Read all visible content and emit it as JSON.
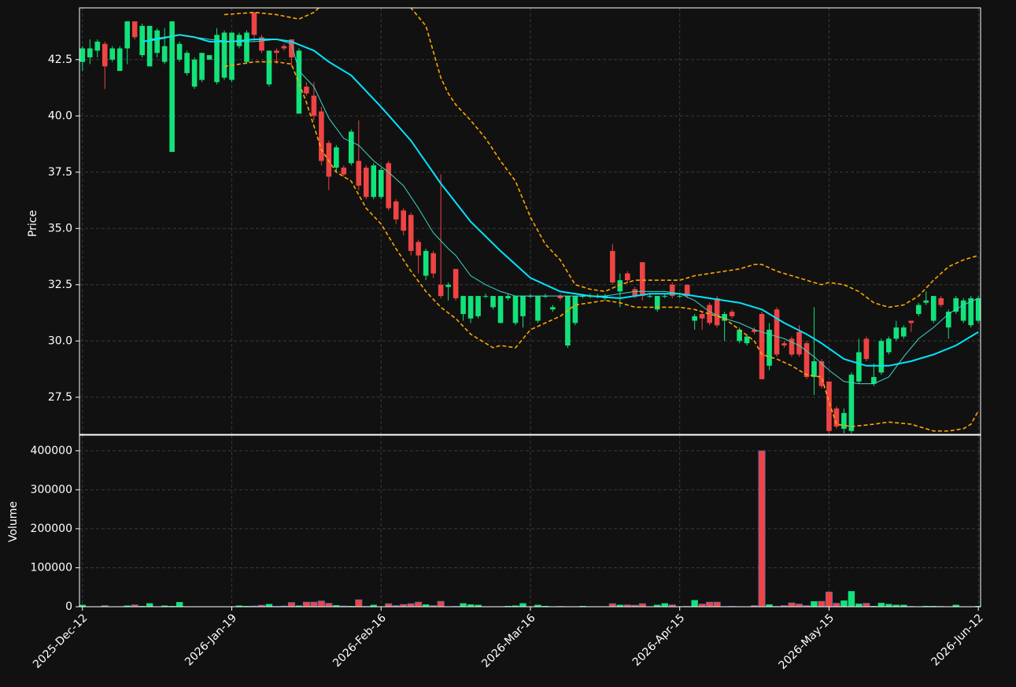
{
  "chart_data": [
    {
      "type": "candlestick",
      "ylabel": "Price",
      "grid": true,
      "up_color": "#12e27a",
      "down_color": "#ee4444",
      "xlim": [
        -0.4,
        120.3
      ],
      "ylim": [
        25.85,
        44.8
      ],
      "yticks": [
        27.5,
        {
          "value": 30,
          "label": "30.0"
        },
        32.5,
        {
          "value": 35,
          "label": "35.0"
        },
        37.5,
        {
          "value": 40,
          "label": "40.0"
        },
        42.5
      ],
      "open": [
        42.4,
        42.6,
        42.9,
        43.2,
        42.5,
        42.0,
        43.0,
        44.2,
        42.7,
        42.2,
        42.8,
        42.4,
        38.4,
        42.5,
        41.9,
        41.3,
        41.6,
        42.5,
        41.5,
        41.7,
        41.6,
        43.1,
        42.4,
        44.6,
        43.5,
        41.4,
        42.9,
        43.1,
        43.4,
        40.1,
        41.3,
        40.9,
        40.2,
        38.8,
        37.7,
        37.7,
        37.9,
        38.0,
        37.7,
        36.4,
        36.4,
        37.9,
        36.2,
        35.8,
        35.6,
        34.4,
        32.9,
        33.9,
        32.5,
        32.4,
        33.2,
        31.2,
        31.0,
        31.1,
        32.0,
        31.5,
        30.8,
        31.9,
        30.8,
        31.1,
        32.0,
        30.9,
        32.0,
        31.4,
        32.0,
        29.8,
        30.8,
        32.0,
        32.0,
        32.0,
        31.9,
        34.0,
        32.2,
        33.0,
        32.3,
        33.5,
        32.0,
        31.4,
        32.0,
        32.5,
        32.0,
        32.5,
        30.9,
        31.2,
        31.6,
        31.9,
        30.9,
        31.3,
        30.0,
        29.9,
        30.5,
        31.2,
        28.9,
        31.4,
        29.9,
        30.1,
        30.4,
        29.9,
        28.4,
        29.1,
        28.2,
        27.0,
        26.1,
        26.0,
        28.2,
        30.1,
        28.1,
        28.6,
        29.5,
        30.1,
        30.2,
        30.9,
        31.2,
        31.7,
        30.9,
        31.9,
        30.6,
        31.3,
        30.9,
        30.7,
        30.9
      ],
      "high": [
        43.1,
        43.4,
        43.4,
        43.3,
        43.1,
        43.1,
        44.2,
        44.2,
        44.1,
        44.0,
        43.9,
        43.9,
        44.2,
        43.3,
        42.9,
        42.6,
        42.8,
        42.7,
        43.9,
        43.8,
        43.7,
        43.7,
        43.8,
        44.6,
        43.6,
        42.9,
        43.0,
        43.2,
        43.4,
        43.0,
        41.5,
        41.5,
        40.4,
        38.9,
        38.7,
        37.8,
        39.4,
        39.8,
        37.8,
        37.9,
        37.7,
        38.0,
        36.3,
        35.9,
        35.7,
        34.5,
        34.1,
        34.0,
        37.4,
        32.6,
        33.2,
        32.0,
        32.0,
        32.0,
        32.1,
        32.0,
        32.0,
        32.1,
        32.0,
        32.0,
        32.1,
        32.0,
        32.1,
        31.6,
        32.1,
        32.0,
        32.0,
        32.1,
        32.1,
        32.1,
        32.1,
        34.3,
        33.0,
        33.1,
        32.4,
        33.5,
        32.1,
        32.0,
        32.1,
        32.6,
        32.1,
        32.5,
        31.2,
        31.3,
        31.7,
        32.0,
        31.3,
        31.4,
        30.6,
        30.3,
        30.6,
        31.3,
        30.8,
        31.5,
        30.0,
        30.2,
        30.7,
        30.0,
        31.5,
        29.2,
        28.2,
        27.1,
        27.0,
        28.6,
        30.1,
        30.2,
        29.0,
        30.1,
        30.2,
        30.9,
        30.7,
        30.9,
        31.7,
        32.2,
        32.0,
        32.0,
        31.4,
        32.0,
        31.9,
        32.0,
        32.0
      ],
      "low": [
        42.0,
        42.3,
        42.6,
        41.2,
        42.4,
        42.0,
        42.3,
        43.4,
        42.6,
        42.2,
        42.6,
        42.3,
        38.4,
        42.4,
        41.8,
        41.2,
        41.5,
        42.5,
        41.4,
        41.6,
        41.5,
        43.0,
        42.3,
        43.3,
        42.8,
        41.3,
        42.3,
        42.9,
        42.2,
        40.1,
        40.9,
        39.8,
        37.8,
        36.7,
        37.5,
        37.3,
        37.8,
        36.7,
        36.3,
        36.3,
        36.3,
        35.8,
        35.2,
        34.7,
        33.8,
        33.0,
        32.7,
        32.8,
        31.9,
        31.8,
        31.8,
        30.9,
        30.8,
        31.0,
        31.9,
        31.4,
        30.8,
        31.8,
        30.7,
        30.6,
        31.9,
        30.8,
        31.9,
        31.3,
        31.8,
        29.7,
        30.7,
        31.9,
        31.9,
        31.9,
        31.8,
        32.5,
        31.5,
        32.6,
        31.9,
        31.8,
        31.9,
        31.3,
        31.9,
        31.9,
        31.9,
        31.9,
        30.5,
        30.5,
        30.7,
        30.6,
        30.0,
        31.0,
        29.9,
        29.8,
        30.3,
        28.3,
        28.7,
        29.3,
        29.7,
        29.3,
        29.3,
        28.3,
        27.6,
        27.9,
        25.9,
        26.1,
        25.9,
        25.9,
        28.1,
        29.1,
        28.0,
        28.5,
        29.4,
        30.0,
        30.1,
        30.4,
        31.1,
        31.6,
        30.8,
        31.5,
        30.1,
        31.2,
        30.8,
        30.6,
        30.8
      ],
      "close": [
        43.0,
        43.0,
        43.3,
        42.2,
        43.0,
        43.0,
        44.2,
        43.5,
        44.0,
        44.0,
        43.8,
        43.1,
        44.2,
        43.2,
        42.8,
        42.5,
        42.8,
        42.7,
        43.6,
        43.7,
        43.7,
        43.6,
        43.7,
        43.6,
        42.9,
        42.9,
        42.8,
        43.0,
        42.6,
        42.9,
        41.0,
        40.0,
        38.0,
        37.3,
        38.6,
        37.4,
        39.3,
        36.9,
        36.4,
        37.8,
        37.6,
        35.9,
        35.4,
        34.9,
        34.0,
        33.8,
        34.0,
        33.0,
        32.0,
        32.5,
        31.9,
        32.0,
        32.0,
        32.0,
        32.0,
        32.0,
        32.0,
        32.0,
        32.0,
        32.0,
        32.0,
        32.0,
        32.0,
        31.5,
        31.9,
        32.0,
        32.0,
        32.0,
        32.0,
        32.0,
        32.0,
        32.6,
        32.7,
        32.7,
        32.0,
        32.0,
        32.0,
        32.0,
        32.0,
        32.0,
        32.0,
        32.0,
        31.1,
        31.0,
        30.8,
        30.7,
        31.2,
        31.1,
        30.5,
        30.2,
        30.4,
        28.3,
        30.5,
        29.4,
        29.8,
        29.4,
        29.4,
        28.4,
        29.1,
        28.0,
        26.0,
        26.2,
        26.8,
        28.5,
        29.5,
        29.2,
        28.4,
        30.0,
        30.1,
        30.6,
        30.6,
        30.8,
        31.6,
        31.8,
        32.0,
        31.6,
        31.3,
        31.9,
        31.8,
        31.9,
        31.9
      ],
      "overlays": [
        {
          "color": "#00e5ff",
          "width": 2,
          "dash": false,
          "x": [
            8,
            10,
            13,
            15,
            17,
            20,
            23,
            26,
            28,
            31,
            33,
            36,
            40,
            44,
            48,
            52,
            56,
            60,
            64,
            68,
            72,
            76,
            80,
            84,
            88,
            91,
            94,
            97,
            99,
            102,
            105,
            108,
            111,
            114,
            117,
            120
          ],
          "values": [
            43.3,
            43.4,
            43.6,
            43.5,
            43.3,
            43.3,
            43.4,
            43.4,
            43.3,
            42.9,
            42.4,
            41.8,
            40.4,
            38.9,
            37.0,
            35.3,
            34.0,
            32.8,
            32.2,
            32.0,
            31.9,
            32.1,
            32.1,
            31.9,
            31.7,
            31.4,
            30.8,
            30.3,
            29.9,
            29.2,
            28.9,
            28.9,
            29.1,
            29.4,
            29.8,
            30.4
          ]
        },
        {
          "color": "#3fd6c8",
          "width": 1,
          "dash": false,
          "x": [
            9,
            13,
            17,
            20,
            23,
            26,
            28,
            29,
            31,
            33,
            35,
            37,
            39,
            41,
            43,
            45,
            47,
            49,
            50,
            52,
            54,
            56,
            58,
            62,
            66,
            70,
            74,
            78,
            80,
            82,
            84,
            86,
            88,
            90,
            92,
            94,
            96,
            98,
            100,
            102,
            104,
            106,
            108,
            110,
            112,
            114,
            116,
            118,
            120
          ],
          "values": [
            43.4,
            43.6,
            43.4,
            43.3,
            43.3,
            43.4,
            43.2,
            42.0,
            41.3,
            39.9,
            39.0,
            38.7,
            38.0,
            37.5,
            36.9,
            35.9,
            34.8,
            34.1,
            33.8,
            32.9,
            32.5,
            32.2,
            32.0,
            32.0,
            32.0,
            32.0,
            32.2,
            32.2,
            32.1,
            31.8,
            31.3,
            31.0,
            30.8,
            30.5,
            30.3,
            30.1,
            29.8,
            29.3,
            28.7,
            28.2,
            28.1,
            28.1,
            28.4,
            29.3,
            30.1,
            30.6,
            31.2,
            31.6,
            31.9
          ]
        },
        {
          "color": "#ffa500",
          "width": 1.6,
          "dash": true,
          "x": [
            19,
            23,
            26,
            29,
            31,
            33,
            36,
            40,
            43,
            46,
            48,
            49,
            50,
            52,
            54,
            56,
            58,
            60,
            62,
            64,
            66,
            68,
            70,
            72,
            74,
            76,
            80,
            82,
            84,
            88,
            90,
            91,
            93,
            95,
            97,
            99,
            100,
            102,
            104,
            106,
            108,
            110,
            112,
            114,
            116,
            118,
            120
          ],
          "values": [
            44.5,
            44.6,
            44.5,
            44.3,
            44.6,
            45.2,
            45.8,
            46.0,
            45.2,
            44.0,
            41.7,
            41.0,
            40.5,
            39.8,
            39.0,
            38.0,
            37.1,
            35.5,
            34.3,
            33.6,
            32.5,
            32.3,
            32.2,
            32.5,
            32.7,
            32.7,
            32.7,
            32.9,
            33.0,
            33.2,
            33.4,
            33.4,
            33.1,
            32.9,
            32.7,
            32.5,
            32.6,
            32.5,
            32.2,
            31.7,
            31.5,
            31.6,
            32.0,
            32.7,
            33.3,
            33.6,
            33.8
          ]
        },
        {
          "color": "#ffa500",
          "width": 1.6,
          "dash": true,
          "x": [
            19,
            23,
            26,
            28,
            30,
            32,
            34,
            36,
            38,
            40,
            42,
            44,
            46,
            48,
            50,
            52,
            54,
            55,
            56,
            58,
            60,
            62,
            64,
            66,
            68,
            70,
            72,
            74,
            76,
            80,
            82,
            84,
            86,
            88,
            90,
            91,
            93,
            95,
            97,
            99,
            100,
            101,
            103,
            106,
            108,
            111,
            114,
            116,
            118,
            119,
            120
          ],
          "values": [
            42.2,
            42.4,
            42.4,
            42.3,
            40.6,
            38.5,
            37.5,
            37.1,
            35.9,
            35.2,
            34.1,
            33.1,
            32.2,
            31.5,
            31.0,
            30.3,
            29.9,
            29.7,
            29.8,
            29.7,
            30.5,
            30.8,
            31.1,
            31.6,
            31.7,
            31.8,
            31.7,
            31.5,
            31.5,
            31.5,
            31.4,
            31.2,
            31.0,
            30.5,
            30.0,
            29.4,
            29.2,
            28.9,
            28.5,
            28.4,
            27.3,
            26.3,
            26.2,
            26.3,
            26.4,
            26.3,
            26.0,
            26.0,
            26.1,
            26.3,
            26.9
          ]
        }
      ]
    },
    {
      "type": "bar",
      "ylabel": "Volume",
      "grid": true,
      "xlim": [
        -0.4,
        120.3
      ],
      "ylim": [
        0,
        440000
      ],
      "yticks": [
        0,
        100000,
        200000,
        300000,
        400000
      ],
      "categories": [
        "2025-Dec-12",
        null,
        null,
        null,
        null,
        null,
        null,
        null,
        null,
        null,
        null,
        null,
        null,
        null,
        null,
        null,
        null,
        null,
        null,
        null,
        "2026-Jan-19",
        null,
        null,
        null,
        null,
        null,
        null,
        null,
        null,
        null,
        null,
        null,
        null,
        null,
        null,
        null,
        null,
        null,
        null,
        null,
        "2026-Feb-16",
        null,
        null,
        null,
        null,
        null,
        null,
        null,
        null,
        null,
        null,
        null,
        null,
        null,
        null,
        null,
        null,
        null,
        null,
        null,
        "2026-Mar-16",
        null,
        null,
        null,
        null,
        null,
        null,
        null,
        null,
        null,
        null,
        null,
        null,
        null,
        null,
        null,
        null,
        null,
        null,
        null,
        "2026-Apr-15",
        null,
        null,
        null,
        null,
        null,
        null,
        null,
        null,
        null,
        null,
        null,
        null,
        null,
        null,
        null,
        null,
        null,
        null,
        null,
        "2026-May-15",
        null,
        null,
        null,
        null,
        null,
        null,
        null,
        null,
        null,
        null,
        null,
        null,
        null,
        null,
        null,
        null,
        null,
        null,
        null,
        "2026-Jun-12"
      ],
      "values": [
        5000,
        1000,
        1000,
        3000,
        1000,
        1000,
        3000,
        5000,
        2000,
        9000,
        1000,
        3000,
        2000,
        12000,
        1000,
        1000,
        1000,
        1000,
        1000,
        1000,
        1000,
        3000,
        2000,
        2000,
        4000,
        7000,
        1000,
        2000,
        11000,
        3000,
        12000,
        12000,
        15000,
        9000,
        4000,
        2000,
        2000,
        18000,
        1000,
        5000,
        1000,
        8000,
        3000,
        6000,
        8000,
        12000,
        6000,
        3000,
        14000,
        1000,
        1000,
        9000,
        6000,
        5000,
        1000,
        1000,
        1000,
        2000,
        3000,
        9000,
        1000,
        5000,
        2000,
        1000,
        1000,
        1000,
        1000,
        2000,
        1000,
        1000,
        1000,
        8000,
        5000,
        5000,
        4000,
        8000,
        1000,
        5000,
        9000,
        5000,
        1000,
        1000,
        17000,
        7000,
        12000,
        12000,
        1000,
        1000,
        1000,
        1000,
        3000,
        400000,
        6000,
        1000,
        3000,
        10000,
        7000,
        3000,
        14000,
        14000,
        38000,
        9000,
        16000,
        40000,
        8000,
        9000,
        2000,
        10000,
        7000,
        5000,
        5000,
        1000,
        1000,
        2000,
        2000,
        1000,
        1000,
        5000,
        1000,
        1000,
        2000
      ]
    }
  ]
}
